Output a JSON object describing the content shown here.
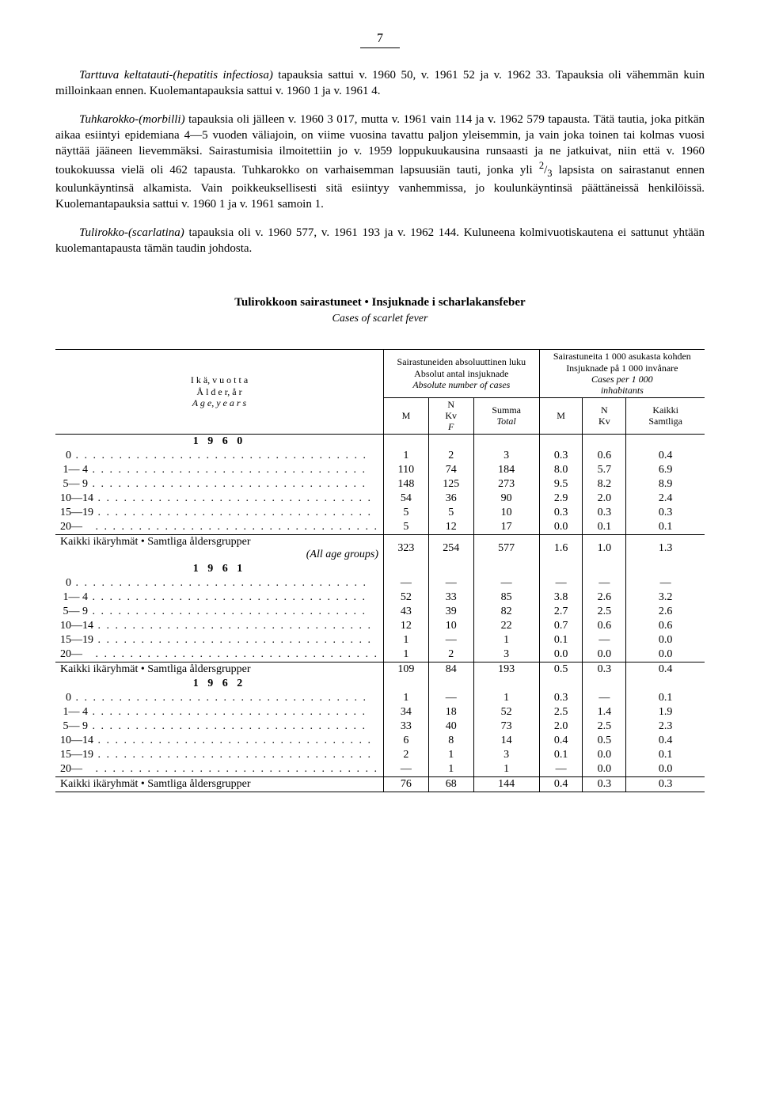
{
  "page_number": "7",
  "paragraphs": {
    "p1": "Tarttuva keltatauti-(hepatitis infectiosa) tapauksia sattui v. 1960 50, v. 1961 52 ja v. 1962 33. Tapauksia oli vähemmän kuin milloinkaan ennen. Kuolemantapauksia sattui v. 1960 1 ja v. 1961 4.",
    "p2": "Tuhkarokko-(morbilli) tapauksia oli jälleen v. 1960 3 017, mutta v. 1961 vain 114 ja v. 1962 579 tapausta. Tätä tautia, joka pitkän aikaa esiintyi epidemiana 4—5 vuoden väliajoin, on viime vuosina tavattu paljon yleisemmin, ja vain joka toinen tai kolmas vuosi näyttää jääneen lievemmäksi. Sairastumisia ilmoitettiin jo v. 1959 loppukuukausina runsaasti ja ne jatkuivat, niin että v. 1960 toukokuussa vielä oli 462 tapausta. Tuhkarokko on varhaisemman lapsuusiän tauti, jonka yli ²/₃ lapsista on sairastanut ennen koulunkäyntinsä alkamista. Vain poikkeuksellisesti sitä esiintyy vanhemmissa, jo koulunkäyntinsä päättäneissä henkilöissä. Kuolemantapauksia sattui v. 1960 1 ja v. 1961 samoin 1.",
    "p3": "Tulirokko-(scarlatina) tapauksia oli v. 1960 577, v. 1961 193 ja v. 1962 144. Kuluneena kolmivuotiskautena ei sattunut yhtään kuolemantapausta tämän taudin johdosta."
  },
  "table_heading": "Tulirokkoon sairastuneet • Insjuknade i scharlakansfeber",
  "table_subheading": "Cases of scarlet fever",
  "headers": {
    "age_lines": [
      "I k ä,  v u o t t a",
      "Å l d e r,  å r",
      "A g e, y e a r s"
    ],
    "abs_lines": [
      "Sairastuneiden absoluuttinen luku",
      "Absolut antal insjuknade",
      "Absolute number of cases"
    ],
    "rate_lines": [
      "Sairastuneita 1 000 asukasta kohden",
      "Insjuknade på 1 000 invånare",
      "Cases per 1 000",
      "inhabitants"
    ],
    "M": "M",
    "N_lines": [
      "N",
      "Kv",
      "F"
    ],
    "Summa_lines": [
      "Summa",
      "Total"
    ],
    "N_lines2": [
      "N",
      "Kv"
    ],
    "Kaikki_lines": [
      "Kaikki",
      "Samtliga"
    ]
  },
  "age_labels": {
    "0": "0",
    "1_4": "1— 4",
    "5_9": "5— 9",
    "10_14": "10—14",
    "15_19": "15—19",
    "20": "20—",
    "all_1": "Kaikki ikäryhmät • Samtliga åldersgrupper",
    "all_2": "(All age groups)"
  },
  "years": {
    "1960": "1 9 6 0",
    "1961": "1 9 6 1",
    "1962": "1 9 6 2"
  },
  "data": {
    "1960": {
      "0": {
        "M": "1",
        "N": "2",
        "S": "3",
        "rM": "0.3",
        "rN": "0.6",
        "rK": "0.4"
      },
      "1_4": {
        "M": "110",
        "N": "74",
        "S": "184",
        "rM": "8.0",
        "rN": "5.7",
        "rK": "6.9"
      },
      "5_9": {
        "M": "148",
        "N": "125",
        "S": "273",
        "rM": "9.5",
        "rN": "8.2",
        "rK": "8.9"
      },
      "10_14": {
        "M": "54",
        "N": "36",
        "S": "90",
        "rM": "2.9",
        "rN": "2.0",
        "rK": "2.4"
      },
      "15_19": {
        "M": "5",
        "N": "5",
        "S": "10",
        "rM": "0.3",
        "rN": "0.3",
        "rK": "0.3"
      },
      "20": {
        "M": "5",
        "N": "12",
        "S": "17",
        "rM": "0.0",
        "rN": "0.1",
        "rK": "0.1"
      },
      "all": {
        "M": "323",
        "N": "254",
        "S": "577",
        "rM": "1.6",
        "rN": "1.0",
        "rK": "1.3"
      }
    },
    "1961": {
      "0": {
        "M": "—",
        "N": "—",
        "S": "—",
        "rM": "—",
        "rN": "—",
        "rK": "—"
      },
      "1_4": {
        "M": "52",
        "N": "33",
        "S": "85",
        "rM": "3.8",
        "rN": "2.6",
        "rK": "3.2"
      },
      "5_9": {
        "M": "43",
        "N": "39",
        "S": "82",
        "rM": "2.7",
        "rN": "2.5",
        "rK": "2.6"
      },
      "10_14": {
        "M": "12",
        "N": "10",
        "S": "22",
        "rM": "0.7",
        "rN": "0.6",
        "rK": "0.6"
      },
      "15_19": {
        "M": "1",
        "N": "—",
        "S": "1",
        "rM": "0.1",
        "rN": "—",
        "rK": "0.0"
      },
      "20": {
        "M": "1",
        "N": "2",
        "S": "3",
        "rM": "0.0",
        "rN": "0.0",
        "rK": "0.0"
      },
      "all": {
        "M": "109",
        "N": "84",
        "S": "193",
        "rM": "0.5",
        "rN": "0.3",
        "rK": "0.4"
      }
    },
    "1962": {
      "0": {
        "M": "1",
        "N": "—",
        "S": "1",
        "rM": "0.3",
        "rN": "—",
        "rK": "0.1"
      },
      "1_4": {
        "M": "34",
        "N": "18",
        "S": "52",
        "rM": "2.5",
        "rN": "1.4",
        "rK": "1.9"
      },
      "5_9": {
        "M": "33",
        "N": "40",
        "S": "73",
        "rM": "2.0",
        "rN": "2.5",
        "rK": "2.3"
      },
      "10_14": {
        "M": "6",
        "N": "8",
        "S": "14",
        "rM": "0.4",
        "rN": "0.5",
        "rK": "0.4"
      },
      "15_19": {
        "M": "2",
        "N": "1",
        "S": "3",
        "rM": "0.1",
        "rN": "0.0",
        "rK": "0.1"
      },
      "20": {
        "M": "—",
        "N": "1",
        "S": "1",
        "rM": "—",
        "rN": "0.0",
        "rK": "0.0"
      },
      "all": {
        "M": "76",
        "N": "68",
        "S": "144",
        "rM": "0.4",
        "rN": "0.3",
        "rK": "0.3"
      }
    }
  }
}
